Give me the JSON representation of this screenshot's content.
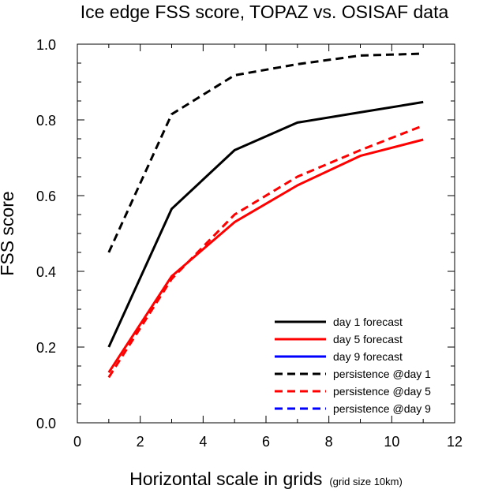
{
  "chart_data": {
    "type": "line",
    "title": "Ice edge FSS score, TOPAZ vs. OSISAF data",
    "xlabel": "Horizontal scale in grids",
    "xlabel_note": "(grid size 10km)",
    "ylabel": "FSS score",
    "xlim": [
      0,
      12
    ],
    "ylim": [
      0,
      1.0
    ],
    "xticks": [
      "0",
      "2",
      "4",
      "6",
      "8",
      "10",
      "12"
    ],
    "yticks": [
      "0.0",
      "0.2",
      "0.4",
      "0.6",
      "0.8",
      "1.0"
    ],
    "grid": false,
    "legend_position": "bottom-right",
    "series": [
      {
        "name": "day 1 forecast",
        "color": "#000000",
        "dash": "solid",
        "x": [
          1,
          3,
          5,
          7,
          9,
          11
        ],
        "y": [
          0.2,
          0.565,
          0.72,
          0.793,
          0.82,
          0.847
        ]
      },
      {
        "name": "day 5 forecast",
        "color": "#ff0000",
        "dash": "solid",
        "x": [
          1,
          3,
          5,
          7,
          9,
          11
        ],
        "y": [
          0.133,
          0.387,
          0.53,
          0.627,
          0.705,
          0.748
        ]
      },
      {
        "name": "day 9 forecast",
        "color": "#0000ff",
        "dash": "solid",
        "x": [],
        "y": []
      },
      {
        "name": "persistence @day 1",
        "color": "#000000",
        "dash": "dashed",
        "x": [
          1,
          3,
          5,
          7,
          9,
          11
        ],
        "y": [
          0.45,
          0.815,
          0.918,
          0.947,
          0.97,
          0.975
        ]
      },
      {
        "name": "persistence @day 5",
        "color": "#ff0000",
        "dash": "dashed",
        "x": [
          1,
          3,
          5,
          7,
          9,
          11
        ],
        "y": [
          0.12,
          0.38,
          0.55,
          0.65,
          0.72,
          0.785
        ]
      },
      {
        "name": "persistence @day 9",
        "color": "#0000ff",
        "dash": "dashed",
        "x": [],
        "y": []
      }
    ]
  }
}
